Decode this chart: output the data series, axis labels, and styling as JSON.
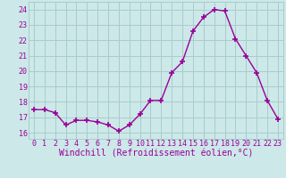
{
  "x": [
    0,
    1,
    2,
    3,
    4,
    5,
    6,
    7,
    8,
    9,
    10,
    11,
    12,
    13,
    14,
    15,
    16,
    17,
    18,
    19,
    20,
    21,
    22,
    23
  ],
  "y": [
    17.5,
    17.5,
    17.3,
    16.5,
    16.8,
    16.8,
    16.7,
    16.5,
    16.1,
    16.5,
    17.2,
    18.1,
    18.1,
    19.9,
    20.6,
    22.6,
    23.5,
    24.0,
    23.9,
    22.1,
    21.0,
    19.9,
    18.1,
    16.9
  ],
  "line_color": "#990099",
  "marker": "+",
  "marker_size": 4,
  "marker_lw": 1.2,
  "bg_color": "#cce8e8",
  "grid_color": "#aacccc",
  "xlabel": "Windchill (Refroidissement éolien,°C)",
  "xlabel_fontsize": 7,
  "tick_fontsize": 6,
  "ylim": [
    15.6,
    24.5
  ],
  "yticks": [
    16,
    17,
    18,
    19,
    20,
    21,
    22,
    23,
    24
  ],
  "xticks": [
    0,
    1,
    2,
    3,
    4,
    5,
    6,
    7,
    8,
    9,
    10,
    11,
    12,
    13,
    14,
    15,
    16,
    17,
    18,
    19,
    20,
    21,
    22,
    23
  ],
  "label_color": "#990099",
  "line_width": 1.0
}
